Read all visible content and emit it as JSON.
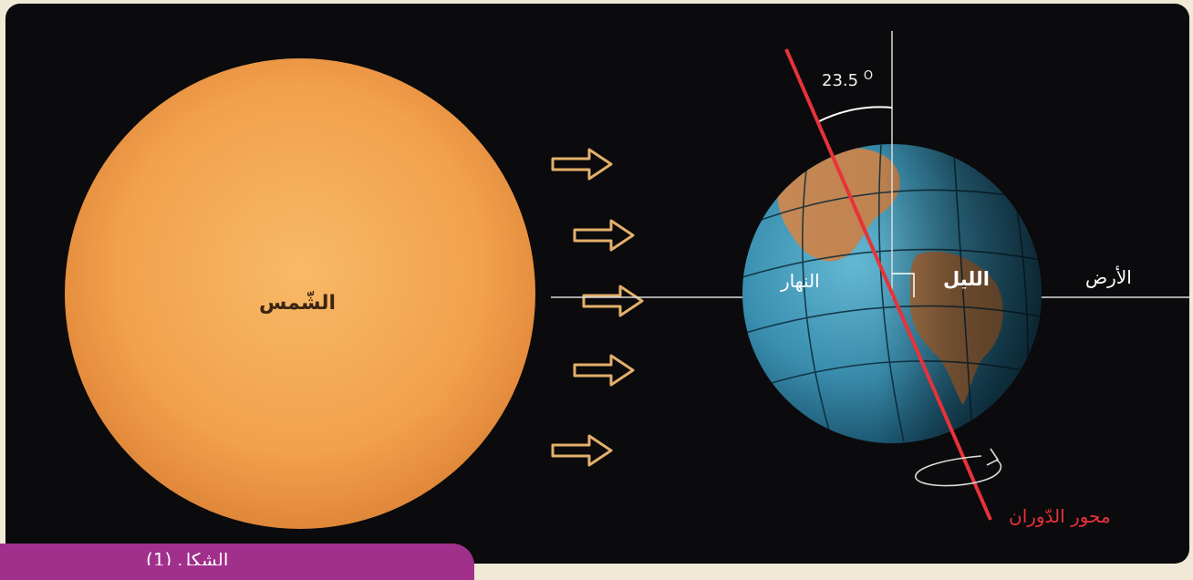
{
  "labels": {
    "sun": "الشّمس",
    "day": "النهار",
    "night": "الليل",
    "earth": "الأرض",
    "tilt_angle": "23.5",
    "tilt_unit": "O",
    "rotation_axis": "محور الدّوران"
  },
  "caption": {
    "text": "الشكل (1)"
  },
  "colors": {
    "background": "#0b0a0c",
    "sun": "#f5a24a",
    "ocean": "#3a8fb0",
    "land": "#c98a55",
    "axis": "#e8323a",
    "arrows": "#e3b06a",
    "caption_tab": "#a0308c"
  }
}
